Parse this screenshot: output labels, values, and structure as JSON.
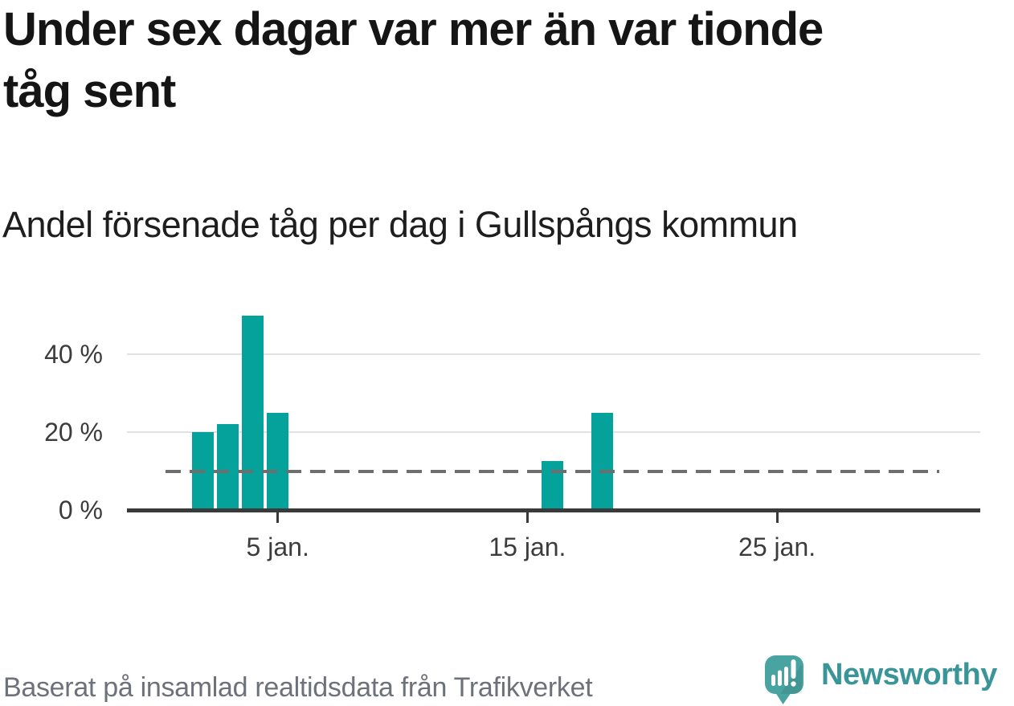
{
  "title": {
    "line1": "Under sex dagar var mer än var tionde",
    "line2": "tåg sent"
  },
  "subtitle": "Andel försenade tåg per dag i Gullspångs kommun",
  "footer": {
    "source": "Baserat på insamlad realtidsdata från Trafikverket",
    "brand_name": "Newsworthy"
  },
  "colors": {
    "title": "#151515",
    "subtitle": "#1e1e1e",
    "bar": "#04a29b",
    "grid": "#e2e2e2",
    "axis": "#3a3a3a",
    "label": "#3c3c3c",
    "refline": "#6e6e6e",
    "source": "#6d717a",
    "brand": "#3a9598",
    "pin": "#48a3a1"
  },
  "chart_data": {
    "type": "bar",
    "title": "Under sex dagar var mer än var tionde tåg sent",
    "subtitle": "Andel försenade tåg per dag i Gullspångs kommun",
    "unit": "%",
    "x_unit": "day of January",
    "x": [
      2,
      3,
      4,
      5,
      16,
      18
    ],
    "values": [
      20,
      22,
      50,
      25,
      12.5,
      25
    ],
    "x_ticks": [
      {
        "day": 5,
        "label": "5 jan."
      },
      {
        "day": 15,
        "label": "15 jan."
      },
      {
        "day": 25,
        "label": "25 jan."
      }
    ],
    "y_ticks": [
      {
        "value": 0,
        "label": "0 %"
      },
      {
        "value": 20,
        "label": "20 %"
      },
      {
        "value": 40,
        "label": "40 %"
      }
    ],
    "reference_line": {
      "value": 10,
      "style": "dashed"
    },
    "x_domain_days": [
      0.5,
      31.5
    ],
    "ylim": [
      0,
      55
    ],
    "grid": "horizontal",
    "legend": "none"
  }
}
